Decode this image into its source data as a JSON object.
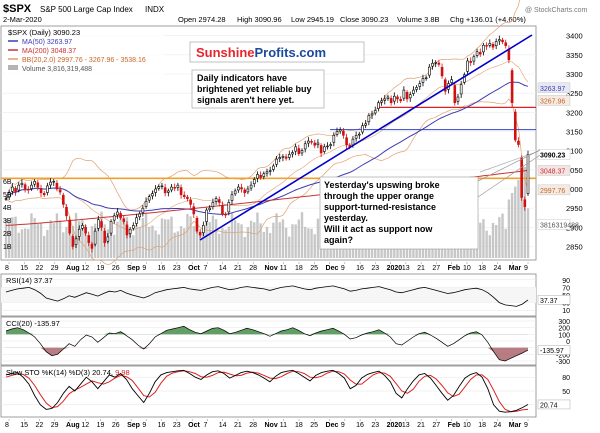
{
  "header": {
    "symbol": "$SPX",
    "name": "S&P 500 Large Cap Index",
    "exchange": "INDX",
    "date": "2-Mar-2020",
    "open": "Open 2974.28",
    "high": "High 3090.96",
    "low": "Low 2945.19",
    "close": "Close 3090.23",
    "volume": "Volume 3.8B",
    "change": "Chg +136.01 (+4.60%)",
    "copyright": "@ StockCharts.com"
  },
  "legend": {
    "line1": "$SPX (Daily) 3090.23",
    "line2": "MA(50) 3263.97",
    "line3": "MA(200) 3048.37",
    "line4": "BB(20,2.0) 2997.76 - 3267.96 - 3538.16",
    "line5": "Volume 3,816,319,488"
  },
  "logo": {
    "part1": "Sunshine",
    "part2": "Profits",
    "part3": ".com"
  },
  "annotations": {
    "top": [
      "Daily indicators have",
      "brightened yet reliable buy",
      "signals aren't here yet."
    ],
    "bottom": [
      "Yesterday's upswing broke",
      "through the upper orange",
      "support-turned-resistance",
      "yesterday.",
      "Will it act as support now",
      "again?"
    ]
  },
  "colors": {
    "price_bar": "#000000",
    "price_up": "#000000",
    "price_down": "#d01010",
    "ma50": "#3c3cb4",
    "ma200": "#c83232",
    "bb": "#e0a070",
    "volume": "#b4b4b4",
    "trendline": "#0000cc",
    "orange_level": "#f0a030",
    "red_level": "#dd2222",
    "blue_level": "#3344cc",
    "rsi": "#000000",
    "cci_fill_pos": "#2e7d32",
    "cci_fill_neg": "#a0505a",
    "sto_k": "#000000",
    "sto_d": "#dd2222"
  },
  "price_axis": {
    "ticks": [
      "3400",
      "3350",
      "3300",
      "3250",
      "3200",
      "3150",
      "3100",
      "3050",
      "3000",
      "2950",
      "2900",
      "2850"
    ],
    "tags": [
      {
        "label": "3263.97",
        "value": 3263.97,
        "bg": "#e8e8f4",
        "fg": "#3c3cb4"
      },
      {
        "label": "3267.96",
        "value": 3231,
        "bg": "#f4ece4",
        "fg": "#c86428"
      },
      {
        "label": "3090.23",
        "value": 3090.23,
        "bg": "#ffffff",
        "fg": "#000000",
        "bold": true
      },
      {
        "label": "3048.37",
        "value": 3048.37,
        "bg": "#f4e4e4",
        "fg": "#c83232"
      },
      {
        "label": "2997.76",
        "value": 2997.76,
        "bg": "#f4ece4",
        "fg": "#c86428"
      },
      {
        "label": "3816319488",
        "value": 2908,
        "bg": "#ffffff",
        "fg": "#555555"
      }
    ]
  },
  "volume_axis": {
    "ticks": [
      "6B",
      "5B",
      "4B",
      "3B",
      "2B",
      "1B"
    ]
  },
  "x_axis": {
    "labels": [
      "8",
      "15",
      "22",
      "29",
      "Aug",
      "12",
      "19",
      "26",
      "Sep",
      "9",
      "16",
      "23",
      "Oct",
      "7",
      "14",
      "21",
      "28",
      "Nov",
      "11",
      "18",
      "25",
      "Dec",
      "9",
      "16",
      "23",
      "2020",
      "13",
      "21",
      "27",
      "Feb",
      "10",
      "18",
      "24",
      "Mar",
      "9"
    ]
  },
  "rsi": {
    "label": "RSI(14) 37.37",
    "ticks": [
      "90",
      "70",
      "50",
      "30",
      "10"
    ],
    "tag": "37.37",
    "data": [
      58,
      62,
      66,
      68,
      70,
      64,
      55,
      42,
      38,
      34,
      40,
      48,
      44,
      50,
      56,
      52,
      47,
      54,
      60,
      58,
      62,
      55,
      50,
      46,
      42,
      48,
      56,
      60,
      64,
      66,
      68,
      70,
      66,
      64,
      62,
      66,
      70,
      72,
      68,
      64,
      66,
      70,
      72,
      70,
      68,
      66,
      62,
      66,
      70,
      72,
      74,
      70,
      66,
      64,
      68,
      70,
      72,
      74,
      70,
      66,
      60,
      62,
      66,
      68,
      70,
      72,
      68,
      64,
      58,
      56,
      60,
      64,
      68,
      70,
      66,
      62,
      58,
      54,
      56,
      60,
      64,
      66,
      68,
      64,
      56,
      44,
      30,
      24,
      22,
      20,
      26,
      37
    ]
  },
  "cci": {
    "label": "CCI(20) -135.97",
    "ticks": [
      "300",
      "200",
      "100",
      "0",
      "-100",
      "-200",
      "-300"
    ],
    "tag": "-135.97",
    "data": [
      150,
      180,
      200,
      170,
      120,
      60,
      -40,
      -160,
      -220,
      -200,
      -120,
      -40,
      -80,
      20,
      90,
      60,
      -20,
      50,
      120,
      110,
      140,
      80,
      20,
      -60,
      -120,
      -40,
      60,
      110,
      160,
      180,
      200,
      220,
      170,
      130,
      110,
      150,
      190,
      200,
      160,
      110,
      130,
      160,
      190,
      170,
      140,
      110,
      70,
      110,
      150,
      170,
      200,
      160,
      110,
      80,
      120,
      150,
      170,
      190,
      150,
      100,
      30,
      50,
      90,
      120,
      140,
      170,
      120,
      60,
      -40,
      -60,
      0,
      60,
      110,
      130,
      90,
      40,
      -20,
      -80,
      -40,
      20,
      80,
      120,
      140,
      90,
      -20,
      -160,
      -280,
      -300,
      -260,
      -220,
      -180,
      -136
    ]
  },
  "sto": {
    "label_k": "Slow STO %K(14) %D(3) 20.74,",
    "label_d": "9.98",
    "ticks": [
      "80",
      "50",
      "20"
    ],
    "tag": "20.74",
    "k": [
      85,
      88,
      90,
      80,
      65,
      40,
      20,
      10,
      12,
      25,
      45,
      60,
      50,
      65,
      80,
      70,
      55,
      70,
      85,
      80,
      88,
      75,
      55,
      40,
      25,
      45,
      70,
      85,
      90,
      92,
      94,
      95,
      88,
      80,
      75,
      85,
      92,
      94,
      88,
      78,
      84,
      90,
      93,
      90,
      85,
      78,
      70,
      82,
      90,
      93,
      95,
      88,
      80,
      72,
      84,
      90,
      93,
      95,
      88,
      78,
      55,
      62,
      78,
      86,
      90,
      93,
      84,
      70,
      45,
      35,
      55,
      72,
      85,
      88,
      78,
      62,
      45,
      30,
      40,
      60,
      78,
      86,
      90,
      80,
      55,
      20,
      6,
      4,
      5,
      8,
      14,
      20.74
    ],
    "d": [
      80,
      84,
      87,
      86,
      78,
      62,
      42,
      24,
      14,
      16,
      28,
      44,
      52,
      58,
      65,
      72,
      68,
      65,
      70,
      78,
      84,
      81,
      73,
      57,
      40,
      37,
      47,
      67,
      82,
      89,
      92,
      94,
      92,
      88,
      81,
      80,
      84,
      90,
      91,
      87,
      83,
      84,
      89,
      91,
      89,
      84,
      78,
      77,
      81,
      88,
      93,
      92,
      88,
      80,
      79,
      82,
      89,
      93,
      92,
      87,
      74,
      65,
      65,
      75,
      85,
      90,
      89,
      82,
      66,
      50,
      45,
      54,
      71,
      82,
      84,
      76,
      62,
      46,
      38,
      43,
      59,
      75,
      85,
      85,
      75,
      52,
      27,
      10,
      5,
      6,
      9,
      9.98
    ]
  },
  "chart_data": {
    "type": "line",
    "title": "$SPX S&P 500 Large Cap Index INDX",
    "ylim": [
      2820,
      3420
    ],
    "categories_count": 165,
    "series": [
      {
        "name": "$SPX (Daily)",
        "kind": "ohlc",
        "close": [
          2975,
          2990,
          3005,
          2993,
          3010,
          3015,
          3000,
          2998,
          3010,
          3020,
          3005,
          2990,
          2985,
          3008,
          3018,
          3020,
          3000,
          2992,
          2960,
          2930,
          2885,
          2850,
          2870,
          2895,
          2905,
          2885,
          2860,
          2845,
          2890,
          2920,
          2900,
          2860,
          2875,
          2915,
          2930,
          2940,
          2925,
          2915,
          2880,
          2895,
          2905,
          2925,
          2935,
          2950,
          2968,
          2980,
          2988,
          3000,
          3006,
          3008,
          2990,
          2995,
          3005,
          3002,
          3010,
          2985,
          2980,
          2975,
          2960,
          2935,
          2890,
          2880,
          2905,
          2945,
          2950,
          2965,
          2975,
          2965,
          2935,
          2932,
          2965,
          2985,
          2995,
          3005,
          3000,
          2990,
          3000,
          3010,
          3025,
          3038,
          3030,
          3040,
          3045,
          3048,
          3060,
          3078,
          3082,
          3085,
          3080,
          3090,
          3095,
          3110,
          3092,
          3100,
          3118,
          3125,
          3122,
          3114,
          3120,
          3094,
          3110,
          3112,
          3116,
          3140,
          3150,
          3155,
          3140,
          3115,
          3110,
          3130,
          3140,
          3143,
          3165,
          3170,
          3192,
          3196,
          3205,
          3225,
          3230,
          3235,
          3240,
          3225,
          3242,
          3235,
          3230,
          3258,
          3235,
          3246,
          3258,
          3265,
          3275,
          3288,
          3290,
          3318,
          3328,
          3330,
          3325,
          3295,
          3255,
          3275,
          3285,
          3225,
          3240,
          3272,
          3298,
          3334,
          3330,
          3345,
          3358,
          3352,
          3375,
          3373,
          3380,
          3370,
          3385,
          3390,
          3384,
          3374,
          3337,
          3225,
          3128,
          3116,
          2978,
          2954,
          3090
        ]
      },
      {
        "name": "MA(50)",
        "last": 3263.97
      },
      {
        "name": "MA(200)",
        "last": 3048.37
      },
      {
        "name": "BB(20,2.0)",
        "lower": 2997.76,
        "middle": 3267.96,
        "upper": 3538.16
      }
    ],
    "volume_last": 3816319488,
    "levels": [
      {
        "name": "upper orange support-turned-resistance",
        "value": 3028
      },
      {
        "name": "red level",
        "value": 3213
      },
      {
        "name": "blue level",
        "value": 3155
      }
    ],
    "indicators": {
      "rsi_last": 37.37,
      "cci_last": -135.97,
      "sto_k_last": 20.74,
      "sto_d_last": 9.98
    }
  }
}
